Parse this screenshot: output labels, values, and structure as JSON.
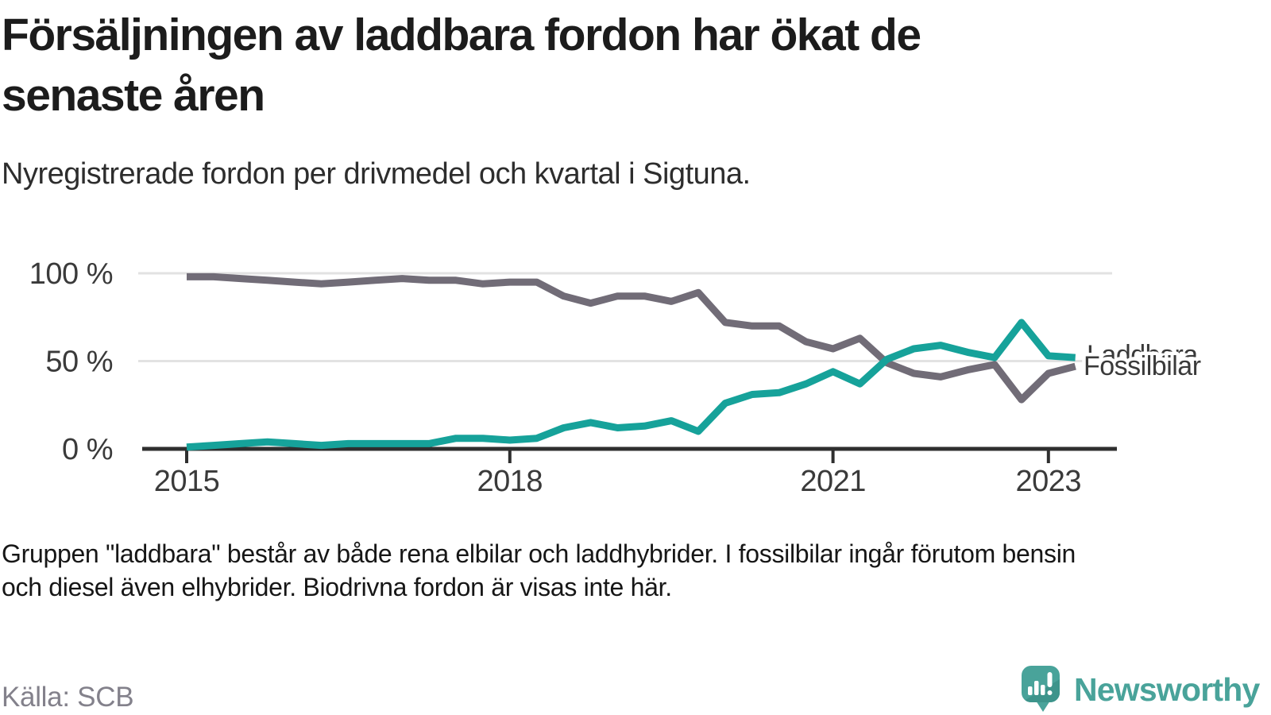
{
  "header": {
    "title_line1": "Försäljningen av laddbara fordon har ökat de",
    "title_line2": "senaste åren",
    "subtitle": "Nyregistrerade fordon per drivmedel och kvartal i Sigtuna."
  },
  "chart_data": {
    "type": "line",
    "unit": "%",
    "quarters": [
      "2015-Q1",
      "2015-Q2",
      "2015-Q3",
      "2015-Q4",
      "2016-Q1",
      "2016-Q2",
      "2016-Q3",
      "2016-Q4",
      "2017-Q1",
      "2017-Q2",
      "2017-Q3",
      "2017-Q4",
      "2018-Q1",
      "2018-Q2",
      "2018-Q3",
      "2018-Q4",
      "2019-Q1",
      "2019-Q2",
      "2019-Q3",
      "2019-Q4",
      "2020-Q1",
      "2020-Q2",
      "2020-Q3",
      "2020-Q4",
      "2021-Q1",
      "2021-Q2",
      "2021-Q3",
      "2021-Q4",
      "2022-Q1",
      "2022-Q2",
      "2022-Q3",
      "2022-Q4",
      "2023-Q1",
      "2023-Q2"
    ],
    "series": [
      {
        "name": "Fossilbilar",
        "color": "#716c77",
        "values": [
          98,
          98,
          97,
          96,
          95,
          94,
          95,
          96,
          97,
          96,
          96,
          94,
          95,
          95,
          87,
          83,
          87,
          87,
          84,
          89,
          72,
          70,
          70,
          61,
          57,
          63,
          49,
          43,
          41,
          45,
          48,
          28,
          43,
          47
        ]
      },
      {
        "name": "Laddbara",
        "color": "#16a29a",
        "values": [
          1,
          2,
          3,
          4,
          3,
          2,
          3,
          3,
          3,
          3,
          6,
          6,
          5,
          6,
          12,
          15,
          12,
          13,
          16,
          10,
          26,
          31,
          32,
          37,
          44,
          37,
          51,
          57,
          59,
          55,
          52,
          72,
          53,
          52
        ]
      }
    ],
    "yticks": [
      {
        "label": "100 %",
        "value": 100
      },
      {
        "label": "50 %",
        "value": 50
      },
      {
        "label": "0 %",
        "value": 0
      }
    ],
    "xticks": [
      {
        "label": "2015",
        "quarter_index": 0
      },
      {
        "label": "2018",
        "quarter_index": 12
      },
      {
        "label": "2021",
        "quarter_index": 24
      },
      {
        "label": "2023",
        "quarter_index": 32
      }
    ],
    "ylim": [
      0,
      100
    ],
    "grid": "horizontal",
    "legend_position": "end-of-line-labels"
  },
  "footnote": {
    "line1": "Gruppen \"laddbara\" består av både rena elbilar och laddhybrider. I fossilbilar ingår förutom bensin",
    "line2": "och diesel även elhybrider. Biodrivna fordon är visas inte här."
  },
  "source": {
    "label": "Källa: SCB"
  },
  "logo": {
    "text": "Newsworthy",
    "color": "#49a39a"
  }
}
